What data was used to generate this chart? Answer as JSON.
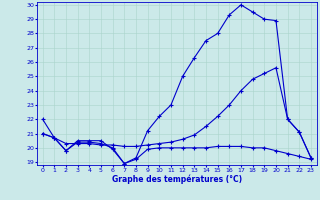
{
  "xlabel": "Graphe des températures (°C)",
  "xlim": [
    -0.5,
    23.5
  ],
  "ylim": [
    18.8,
    30.2
  ],
  "yticks": [
    19,
    20,
    21,
    22,
    23,
    24,
    25,
    26,
    27,
    28,
    29,
    30
  ],
  "xticks": [
    0,
    1,
    2,
    3,
    4,
    5,
    6,
    7,
    8,
    9,
    10,
    11,
    12,
    13,
    14,
    15,
    16,
    17,
    18,
    19,
    20,
    21,
    22,
    23
  ],
  "background_color": "#cbe9e9",
  "grid_color": "#aad4cc",
  "line_color": "#0000cc",
  "line1_x": [
    0,
    1,
    2,
    3,
    4,
    5,
    6,
    7,
    8,
    9,
    10,
    11,
    12,
    13,
    14,
    15,
    16,
    17,
    18,
    19,
    20,
    21,
    22,
    23
  ],
  "line1_y": [
    22.0,
    20.7,
    19.8,
    20.5,
    20.5,
    20.5,
    19.9,
    18.9,
    19.3,
    21.2,
    22.2,
    23.0,
    25.0,
    26.3,
    27.5,
    28.0,
    29.3,
    30.0,
    29.5,
    29.0,
    28.9,
    22.0,
    21.1,
    19.3
  ],
  "line2_x": [
    0,
    1,
    2,
    3,
    4,
    5,
    6,
    7,
    8,
    9,
    10,
    11,
    12,
    13,
    14,
    15,
    16,
    17,
    18,
    19,
    20,
    21,
    22,
    23
  ],
  "line2_y": [
    21.0,
    20.7,
    20.3,
    20.3,
    20.3,
    20.2,
    20.2,
    20.1,
    20.1,
    20.2,
    20.3,
    20.4,
    20.6,
    20.9,
    21.5,
    22.2,
    23.0,
    24.0,
    24.8,
    25.2,
    25.6,
    22.0,
    21.1,
    19.3
  ],
  "line3_x": [
    0,
    1,
    2,
    3,
    4,
    5,
    6,
    7,
    8,
    9,
    10,
    11,
    12,
    13,
    14,
    15,
    16,
    17,
    18,
    19,
    20,
    21,
    22,
    23
  ],
  "line3_y": [
    21.0,
    20.7,
    19.8,
    20.4,
    20.4,
    20.3,
    20.0,
    18.9,
    19.2,
    19.9,
    20.0,
    20.0,
    20.0,
    20.0,
    20.0,
    20.1,
    20.1,
    20.1,
    20.0,
    20.0,
    19.8,
    19.6,
    19.4,
    19.2
  ]
}
